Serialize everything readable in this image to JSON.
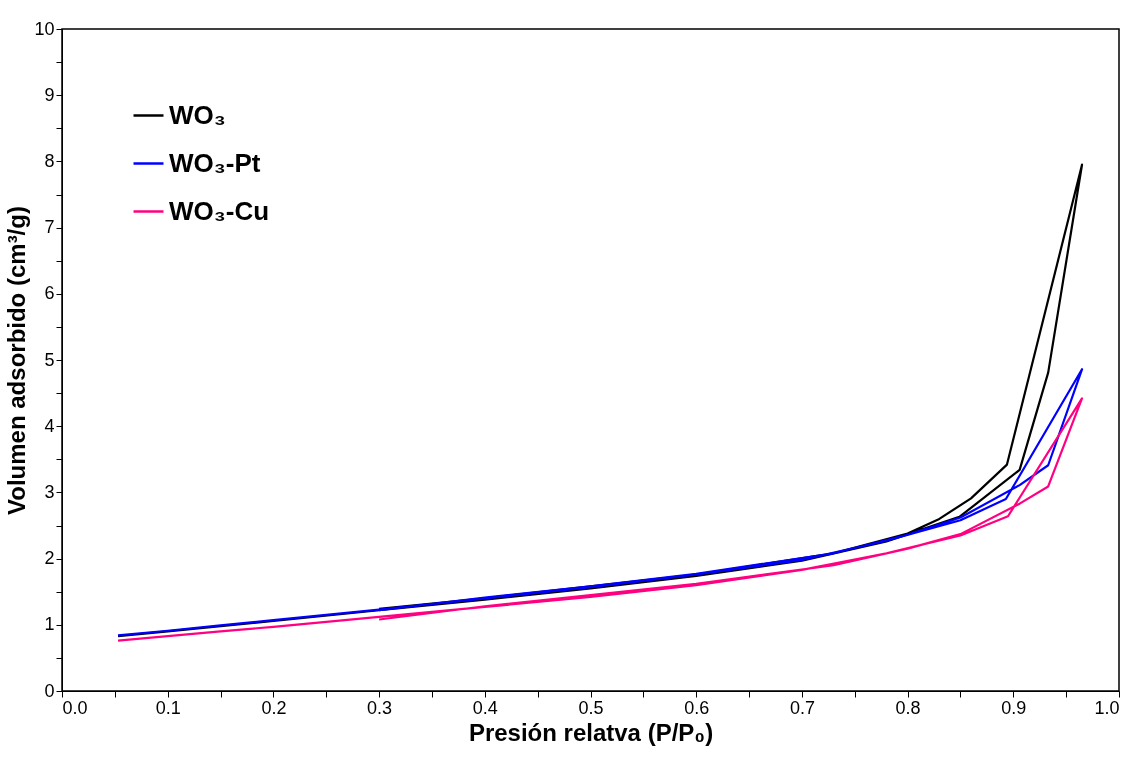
{
  "chart_data": {
    "type": "line",
    "xlabel": "Presión relatva (P/P₀)",
    "ylabel": "Volumen adsorbido (cm³/g)",
    "xlim": [
      0,
      1
    ],
    "ylim": [
      0,
      10
    ],
    "xticks": [
      {
        "value": 0,
        "label": "0.0"
      },
      {
        "value": 0.05,
        "label": null
      },
      0.1,
      {
        "value": 0.15,
        "label": null
      },
      0.2,
      {
        "value": 0.25,
        "label": null
      },
      0.3,
      {
        "value": 0.35,
        "label": null
      },
      0.4,
      {
        "value": 0.45,
        "label": null
      },
      0.5,
      {
        "value": 0.55,
        "label": null
      },
      0.6,
      {
        "value": 0.65,
        "label": null
      },
      0.7,
      {
        "value": 0.75,
        "label": null
      },
      0.8,
      {
        "value": 0.85,
        "label": null
      },
      0.9,
      {
        "value": 0.95,
        "label": null
      },
      {
        "value": 1,
        "label": "1.0"
      }
    ],
    "yticks": [
      0,
      {
        "value": 0.5,
        "label": null
      },
      1,
      {
        "value": 1.5,
        "label": null
      },
      2,
      {
        "value": 2.5,
        "label": null
      },
      3,
      {
        "value": 3.5,
        "label": null
      },
      4,
      {
        "value": 4.5,
        "label": null
      },
      5,
      {
        "value": 5.5,
        "label": null
      },
      6,
      {
        "value": 6.5,
        "label": null
      },
      7,
      {
        "value": 7.5,
        "label": null
      },
      8,
      {
        "value": 8.5,
        "label": null
      },
      9,
      {
        "value": 9.5,
        "label": null
      },
      10
    ],
    "grid": false,
    "legend": "top left",
    "marker": "none",
    "line_style": "solid",
    "series": [
      {
        "name": "WO₃",
        "color": "#000000",
        "x": [
          0.053,
          0.1,
          0.15,
          0.2,
          0.3,
          0.4,
          0.5,
          0.6,
          0.7,
          0.78,
          0.849,
          0.906,
          0.933,
          0.965,
          0.894,
          0.86,
          0.83,
          0.8,
          0.73,
          0.6,
          0.5,
          0.4,
          0.3
        ],
        "values": [
          0.83,
          0.9,
          0.98,
          1.06,
          1.22,
          1.38,
          1.55,
          1.74,
          1.97,
          2.26,
          2.63,
          3.34,
          4.81,
          7.95,
          3.42,
          2.91,
          2.6,
          2.38,
          2.08,
          1.76,
          1.58,
          1.4,
          1.24
        ]
      },
      {
        "name": "WO₃-Pt",
        "color": "#0000ff",
        "x": [
          0.053,
          0.1,
          0.15,
          0.2,
          0.3,
          0.4,
          0.5,
          0.6,
          0.7,
          0.78,
          0.85,
          0.893,
          0.965,
          0.933,
          0.906,
          0.85,
          0.8,
          0.73,
          0.6,
          0.5,
          0.4,
          0.3
        ],
        "values": [
          0.84,
          0.91,
          0.99,
          1.07,
          1.23,
          1.4,
          1.57,
          1.76,
          1.98,
          2.27,
          2.58,
          2.9,
          4.86,
          3.41,
          3.11,
          2.62,
          2.36,
          2.08,
          1.77,
          1.58,
          1.41,
          1.22
        ]
      },
      {
        "name": "WO₃-Cu",
        "color": "#ff0080",
        "x": [
          0.053,
          0.1,
          0.15,
          0.2,
          0.3,
          0.4,
          0.5,
          0.6,
          0.7,
          0.78,
          0.85,
          0.895,
          0.965,
          0.933,
          0.906,
          0.85,
          0.8,
          0.73,
          0.6,
          0.5,
          0.4,
          0.3
        ],
        "values": [
          0.76,
          0.83,
          0.9,
          0.97,
          1.12,
          1.27,
          1.42,
          1.6,
          1.83,
          2.08,
          2.35,
          2.64,
          4.42,
          3.09,
          2.83,
          2.37,
          2.15,
          1.9,
          1.62,
          1.45,
          1.28,
          1.08
        ]
      }
    ]
  }
}
